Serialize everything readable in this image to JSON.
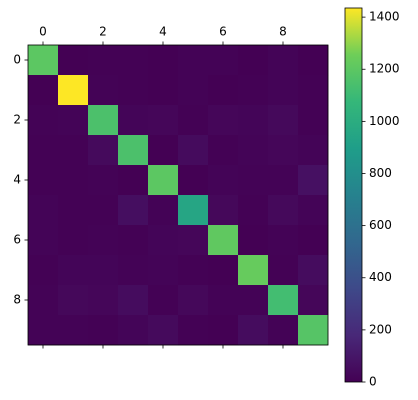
{
  "chart_data": {
    "type": "heatmap",
    "colormap": "viridis",
    "xticks": [
      0,
      2,
      4,
      6,
      8
    ],
    "yticks": [
      0,
      2,
      4,
      6,
      8
    ],
    "xlim": [
      -0.5,
      9.5
    ],
    "ylim": [
      -0.5,
      9.5
    ],
    "zlim": [
      0,
      1435
    ],
    "zticks": [
      0,
      200,
      400,
      600,
      800,
      1000,
      1200,
      1400
    ],
    "z": [
      [
        1200,
        0,
        5,
        3,
        2,
        10,
        10,
        2,
        15,
        2
      ],
      [
        0,
        1435,
        10,
        5,
        2,
        8,
        2,
        3,
        15,
        3
      ],
      [
        10,
        15,
        1150,
        20,
        25,
        5,
        25,
        20,
        35,
        5
      ],
      [
        5,
        5,
        40,
        1150,
        2,
        45,
        5,
        15,
        25,
        15
      ],
      [
        3,
        5,
        10,
        2,
        1200,
        2,
        15,
        10,
        10,
        70
      ],
      [
        15,
        5,
        5,
        60,
        10,
        950,
        30,
        5,
        35,
        15
      ],
      [
        15,
        5,
        10,
        3,
        20,
        25,
        1210,
        2,
        10,
        0
      ],
      [
        5,
        20,
        20,
        10,
        15,
        3,
        2,
        1230,
        5,
        50
      ],
      [
        10,
        30,
        25,
        50,
        5,
        30,
        10,
        8,
        1120,
        25
      ],
      [
        10,
        10,
        5,
        20,
        40,
        5,
        2,
        50,
        10,
        1180
      ]
    ]
  }
}
